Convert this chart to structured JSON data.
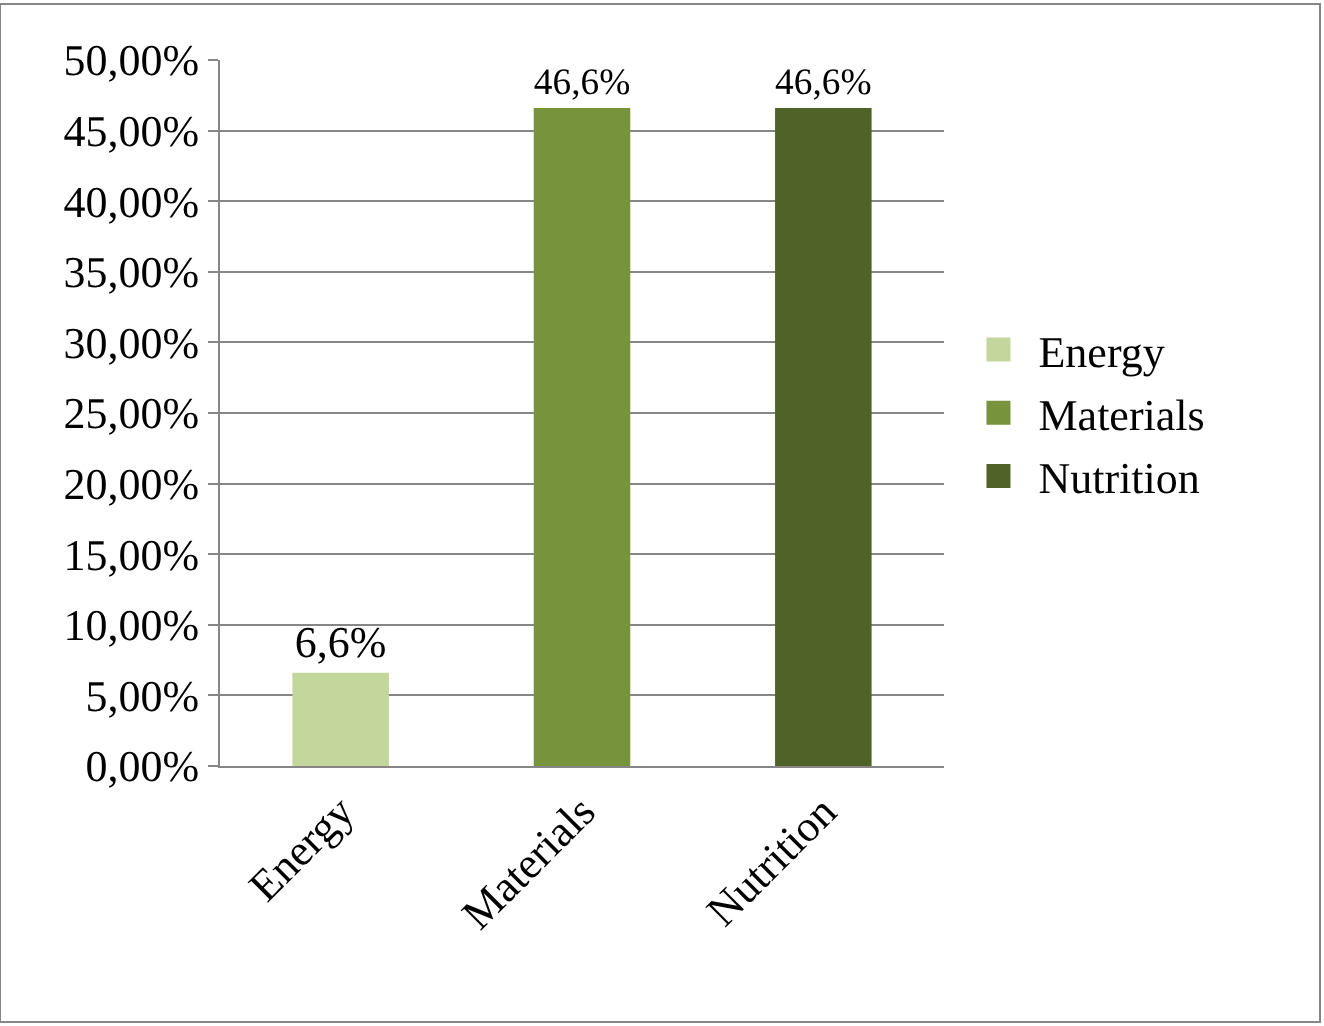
{
  "chart_data": {
    "type": "bar",
    "categories": [
      "Energy",
      "Materials",
      "Nutrition"
    ],
    "series": [
      {
        "name": "Energy",
        "color": "#c3d69b",
        "values": [
          6.6,
          null,
          null
        ],
        "value_labels": [
          "6,6%",
          null,
          null
        ]
      },
      {
        "name": "Materials",
        "color": "#77933c",
        "values": [
          null,
          46.6,
          null
        ],
        "value_labels": [
          null,
          "46,6%",
          null
        ]
      },
      {
        "name": "Nutrition",
        "color": "#4f6228",
        "values": [
          null,
          null,
          46.6
        ],
        "value_labels": [
          null,
          null,
          "46,6%"
        ]
      }
    ],
    "ylim": [
      0,
      50
    ],
    "yticks": [
      {
        "value": 0,
        "label": "0,00%"
      },
      {
        "value": 5,
        "label": "5,00%"
      },
      {
        "value": 10,
        "label": "10,00%"
      },
      {
        "value": 15,
        "label": "15,00%"
      },
      {
        "value": 20,
        "label": "20,00%"
      },
      {
        "value": 25,
        "label": "25,00%"
      },
      {
        "value": 30,
        "label": "30,00%"
      },
      {
        "value": 35,
        "label": "35,00%"
      },
      {
        "value": 40,
        "label": "40,00%"
      },
      {
        "value": 45,
        "label": "45,00%"
      },
      {
        "value": 50,
        "label": "50,00%"
      }
    ],
    "grid": "y",
    "legend": "right"
  }
}
